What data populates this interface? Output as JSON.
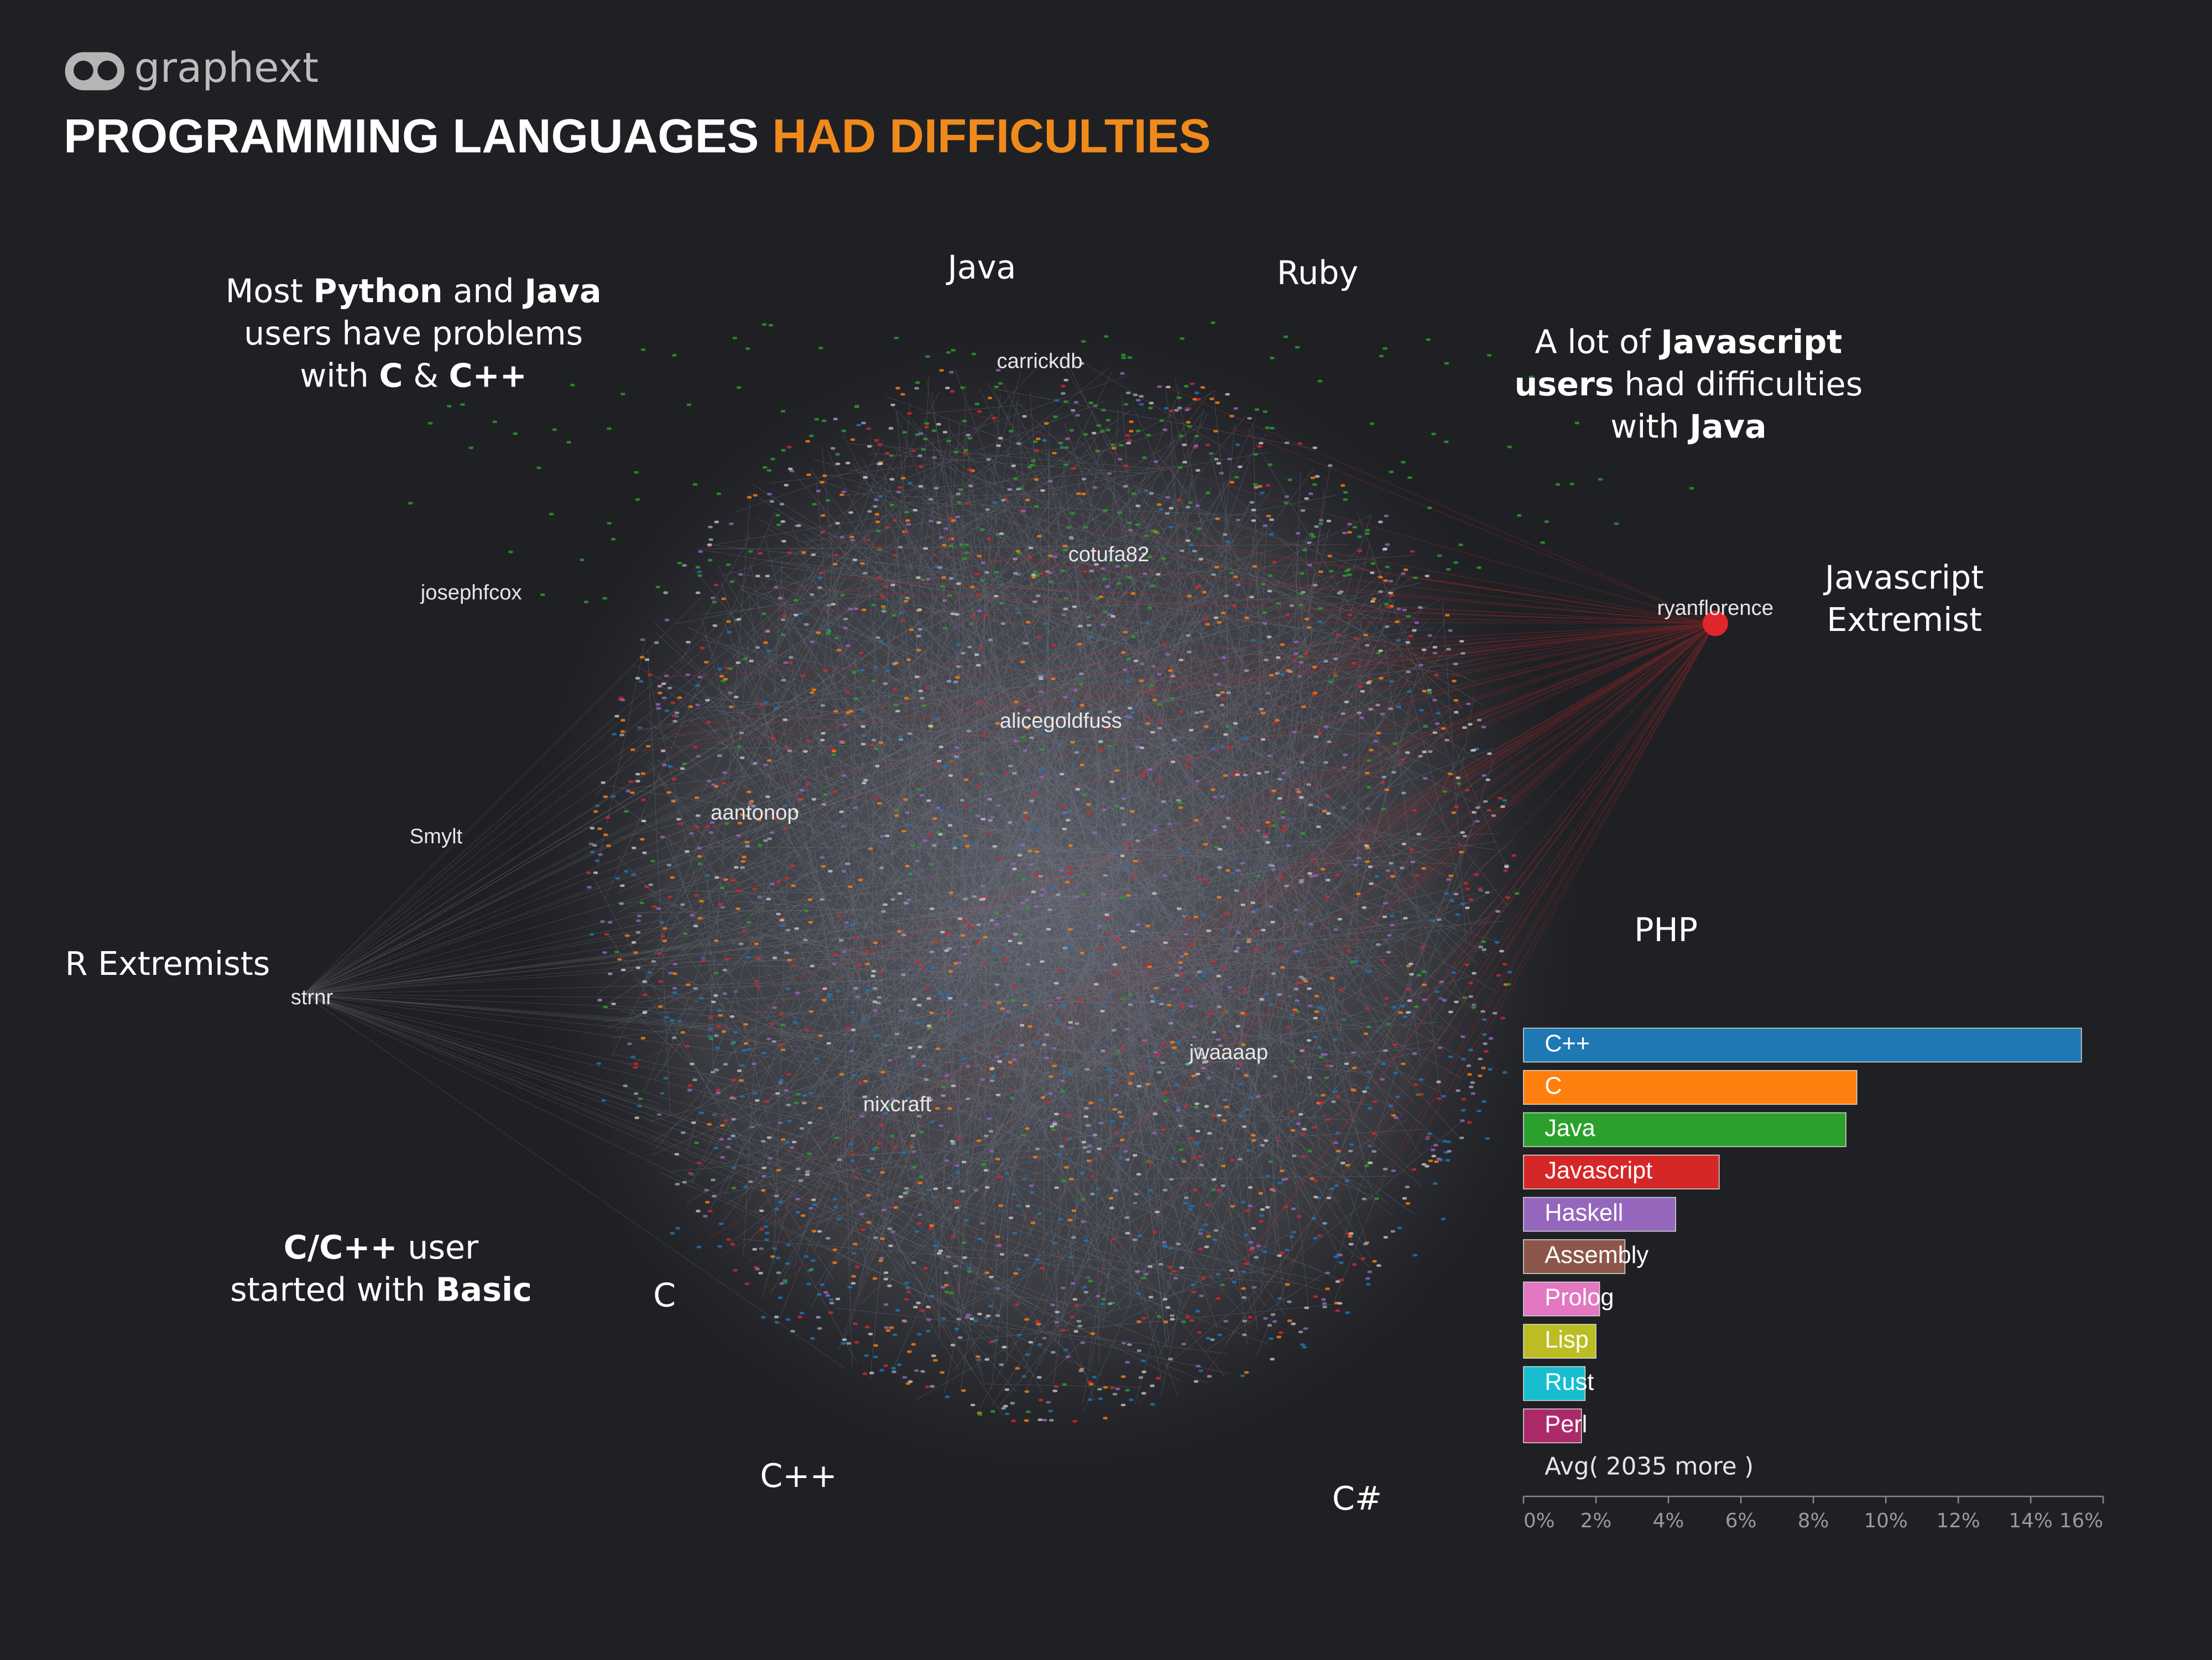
{
  "header": {
    "logo": "graphext",
    "title": [
      "PROGRAMMING LANGUAGES",
      "HAD DIFFICULTIES"
    ]
  },
  "annotations": [
    {
      "lines": [
        [
          "Most ",
          "Python",
          " and ",
          "Java"
        ],
        [
          "users have problems"
        ],
        [
          "with ",
          "C",
          " & ",
          "C++"
        ]
      ]
    },
    {
      "lines": [
        [
          "A lot of ",
          "Javascript"
        ],
        [
          "users",
          " had difficulties"
        ],
        [
          "with ",
          "Java"
        ]
      ]
    },
    {
      "lines": [
        [
          "C/C++",
          " user"
        ],
        [
          "started with ",
          "Basic"
        ]
      ]
    }
  ],
  "cluster_labels": [
    "Java",
    "Ruby",
    "PHP",
    "C",
    "C++",
    "C#",
    "R Extremists",
    [
      "Javascript",
      "Extremist"
    ]
  ],
  "node_labels": [
    "carrickdb",
    "cotufa82",
    "josephfcox",
    "ryanflorence",
    "alicegoldfuss",
    "aantonop",
    "Smylt",
    "strnr",
    "jwaaaap",
    "nixcraft"
  ],
  "chart_data": {
    "type": "bar",
    "orientation": "horizontal",
    "categories": [
      "C++",
      "C",
      "Java",
      "Javascript",
      "Haskell",
      "Assembly",
      "Prolog",
      "Lisp",
      "Rust",
      "Perl"
    ],
    "values": [
      15.4,
      9.2,
      8.9,
      5.4,
      4.2,
      2.8,
      2.1,
      2.0,
      1.7,
      1.6
    ],
    "colors": [
      "#1f77b4",
      "#ff7f0e",
      "#2ca02c",
      "#d62728",
      "#9467bd",
      "#8c564b",
      "#e377c2",
      "#bcbd22",
      "#17becf",
      "#ad2a6a"
    ],
    "avg_label": "Avg( 2035 more )",
    "xlim": [
      0,
      16
    ],
    "xticks": [
      {
        "value": 0,
        "label": "0%"
      },
      {
        "value": 2,
        "label": "2%"
      },
      {
        "value": 4,
        "label": "4%"
      },
      {
        "value": 6,
        "label": "6%"
      },
      {
        "value": 8,
        "label": "8%"
      },
      {
        "value": 10,
        "label": "10%"
      },
      {
        "value": 12,
        "label": "12%"
      },
      {
        "value": 14,
        "label": "14%"
      },
      {
        "value": 16,
        "label": "16%"
      }
    ]
  }
}
